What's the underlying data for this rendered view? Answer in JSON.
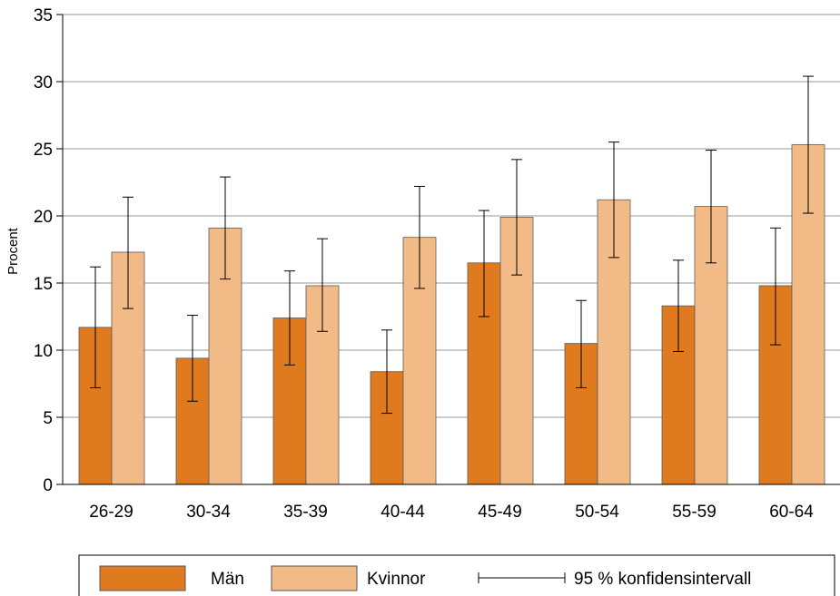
{
  "chart_data": {
    "type": "bar",
    "title": "",
    "xlabel": "",
    "ylabel": "Procent",
    "ylim": [
      0,
      35
    ],
    "yticks": [
      0,
      5,
      10,
      15,
      20,
      25,
      30,
      35
    ],
    "grid": true,
    "legend_position": "bottom",
    "categories": [
      "26-29",
      "30-34",
      "35-39",
      "40-44",
      "45-49",
      "50-54",
      "55-59",
      "60-64"
    ],
    "series": [
      {
        "name": "Män",
        "color": "#E07A1F",
        "values": [
          11.7,
          9.4,
          12.4,
          8.4,
          16.5,
          10.5,
          13.3,
          14.8
        ],
        "ci_low": [
          7.2,
          6.2,
          8.9,
          5.3,
          12.5,
          7.2,
          9.9,
          10.4
        ],
        "ci_high": [
          16.2,
          12.6,
          15.9,
          11.5,
          20.4,
          13.7,
          16.7,
          19.1
        ]
      },
      {
        "name": "Kvinnor",
        "color": "#F2BA86",
        "values": [
          17.3,
          19.1,
          14.8,
          18.4,
          19.9,
          21.2,
          20.7,
          25.3
        ],
        "ci_low": [
          13.1,
          15.3,
          11.4,
          14.6,
          15.6,
          16.9,
          16.5,
          20.2
        ],
        "ci_high": [
          21.4,
          22.9,
          18.3,
          22.2,
          24.2,
          25.5,
          24.9,
          30.4
        ]
      }
    ],
    "legend": {
      "men_label": "Män",
      "women_label": "Kvinnor",
      "ci_label": "95 % konfidensintervall"
    }
  }
}
